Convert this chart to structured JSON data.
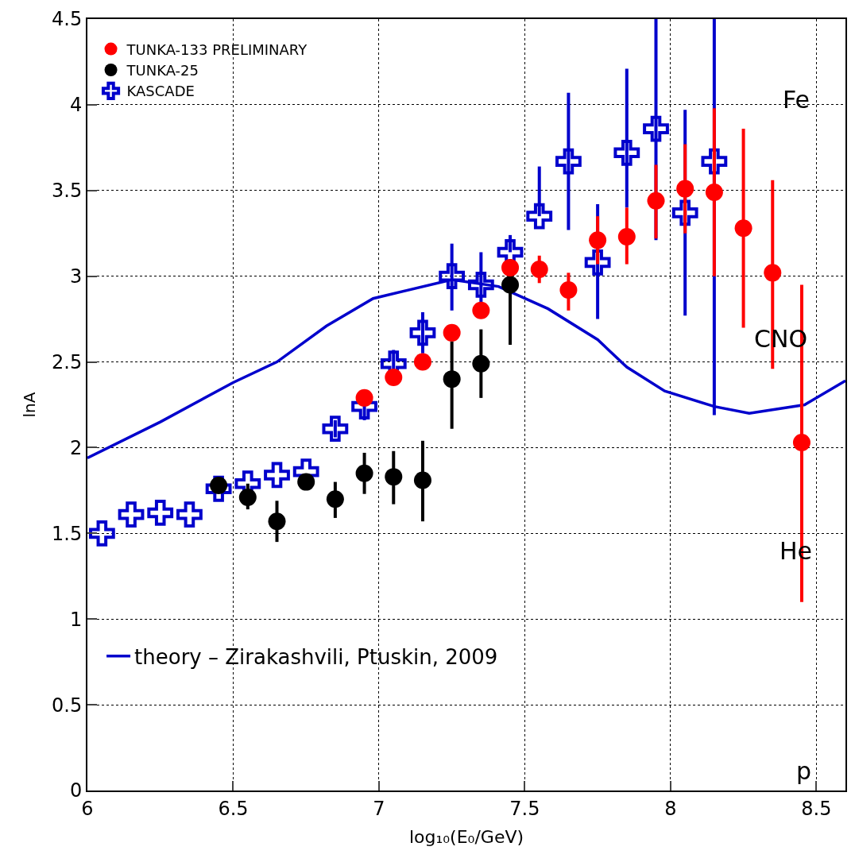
{
  "chart_data": {
    "type": "scatter",
    "xlabel": "log₁₀(E₀/GeV)",
    "ylabel": "lnA",
    "xlim": [
      6,
      8.6
    ],
    "xticks": [
      6,
      6.5,
      7,
      7.5,
      8,
      8.5
    ],
    "ylim": [
      0,
      4.5
    ],
    "yticks": [
      0,
      0.5,
      1,
      1.5,
      2,
      2.5,
      3,
      3.5,
      4,
      4.5
    ],
    "grid": true,
    "legend": "top left",
    "series": [
      {
        "name": "TUNKA-133 PRELIMINARY",
        "color": "#ff0000",
        "marker": "circle",
        "x": [
          6.95,
          7.05,
          7.15,
          7.25,
          7.35,
          7.45,
          7.55,
          7.65,
          7.75,
          7.85,
          7.95,
          8.05,
          8.15,
          8.25,
          8.35,
          8.45
        ],
        "values": [
          2.29,
          2.41,
          2.5,
          2.67,
          2.8,
          3.05,
          3.04,
          2.92,
          3.21,
          3.23,
          3.44,
          3.51,
          3.49,
          3.28,
          3.02,
          2.03
        ],
        "errors": [
          null,
          null,
          null,
          null,
          null,
          null,
          0.08,
          [
            2.8,
            3.02
          ],
          [
            3.07,
            3.35
          ],
          [
            3.07,
            3.4
          ],
          [
            3.22,
            3.65
          ],
          [
            3.25,
            3.77
          ],
          [
            3.0,
            3.98
          ],
          [
            2.7,
            3.86
          ],
          [
            2.46,
            3.56
          ],
          [
            1.1,
            2.95
          ]
        ]
      },
      {
        "name": "TUNKA-25",
        "color": "#000000",
        "marker": "circle",
        "x": [
          6.45,
          6.55,
          6.65,
          6.75,
          6.85,
          6.95,
          7.05,
          7.15,
          7.25,
          7.35,
          7.45
        ],
        "values": [
          1.78,
          1.71,
          1.57,
          1.8,
          1.7,
          1.85,
          1.83,
          1.81,
          2.4,
          2.49,
          2.95
        ],
        "errors": [
          null,
          [
            1.64,
            1.79
          ],
          [
            1.45,
            1.69
          ],
          null,
          [
            1.59,
            1.8
          ],
          [
            1.73,
            1.97
          ],
          [
            1.67,
            1.98
          ],
          [
            1.57,
            2.04
          ],
          [
            2.11,
            2.62
          ],
          [
            2.29,
            2.69
          ],
          [
            2.6,
            3.1
          ]
        ]
      },
      {
        "name": "KASCADE",
        "color": "#0000cc",
        "marker": "cross",
        "x": [
          6.05,
          6.15,
          6.25,
          6.35,
          6.45,
          6.55,
          6.65,
          6.75,
          6.85,
          6.95,
          7.05,
          7.15,
          7.25,
          7.35,
          7.45,
          7.55,
          7.65,
          7.75,
          7.85,
          7.95,
          8.05,
          8.15
        ],
        "values": [
          1.5,
          1.61,
          1.62,
          1.61,
          1.76,
          1.79,
          1.84,
          1.86,
          2.11,
          2.24,
          2.49,
          2.67,
          3.0,
          2.95,
          3.14,
          3.35,
          3.67,
          3.08,
          3.72,
          3.86,
          3.37,
          3.67
        ],
        "errors": [
          null,
          null,
          null,
          null,
          null,
          null,
          null,
          null,
          0.05,
          0.08,
          0.08,
          0.12,
          [
            2.8,
            3.19
          ],
          [
            2.85,
            3.14
          ],
          [
            3.14,
            3.24
          ],
          [
            3.35,
            3.64
          ],
          [
            3.27,
            4.07
          ],
          [
            2.75,
            3.42
          ],
          [
            3.4,
            4.21
          ],
          [
            3.21,
            4.5
          ],
          [
            2.77,
            3.97
          ],
          [
            2.19,
            4.5
          ]
        ]
      },
      {
        "name": "theory – Zirakashvili, Ptuskin, 2009",
        "type": "line",
        "color": "#0000cc",
        "marker": "none",
        "x": [
          6.0,
          6.25,
          6.5,
          6.65,
          6.82,
          6.98,
          7.25,
          7.41,
          7.58,
          7.75,
          7.85,
          7.98,
          8.15,
          8.27,
          8.46,
          8.6
        ],
        "values": [
          1.94,
          2.15,
          2.38,
          2.5,
          2.71,
          2.87,
          2.98,
          2.94,
          2.81,
          2.63,
          2.47,
          2.33,
          2.24,
          2.2,
          2.25,
          2.39
        ]
      }
    ],
    "annotations": [
      "Fe",
      "CNO",
      "He",
      "p"
    ]
  }
}
